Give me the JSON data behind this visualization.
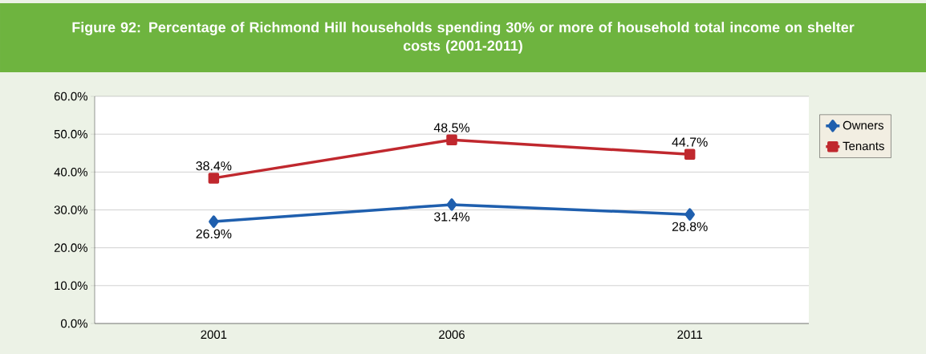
{
  "chart_data": {
    "type": "line",
    "title": "Figure 92: Percentage of Richmond Hill households spending 30% or more of household total income on shelter costs (2001-2011)",
    "categories": [
      "2001",
      "2006",
      "2011"
    ],
    "series": [
      {
        "name": "Owners",
        "color": "#1f5fae",
        "marker": "diamond",
        "values": [
          26.9,
          31.4,
          28.8
        ],
        "value_labels": [
          "26.9%",
          "31.4%",
          "28.8%"
        ]
      },
      {
        "name": "Tenants",
        "color": "#c0282e",
        "marker": "square",
        "values": [
          38.4,
          48.5,
          44.7
        ],
        "value_labels": [
          "38.4%",
          "48.5%",
          "44.7%"
        ]
      }
    ],
    "ylim": [
      0,
      60
    ],
    "yticks": [
      {
        "value": 0,
        "label": "0.0%"
      },
      {
        "value": 10,
        "label": "10.0%"
      },
      {
        "value": 20,
        "label": "20.0%"
      },
      {
        "value": 30,
        "label": "30.0%"
      },
      {
        "value": 40,
        "label": "40.0%"
      },
      {
        "value": 50,
        "label": "50.0%"
      },
      {
        "value": 60,
        "label": "60.0%"
      }
    ],
    "grid": "y",
    "legend": "right",
    "line_style": "solid"
  }
}
